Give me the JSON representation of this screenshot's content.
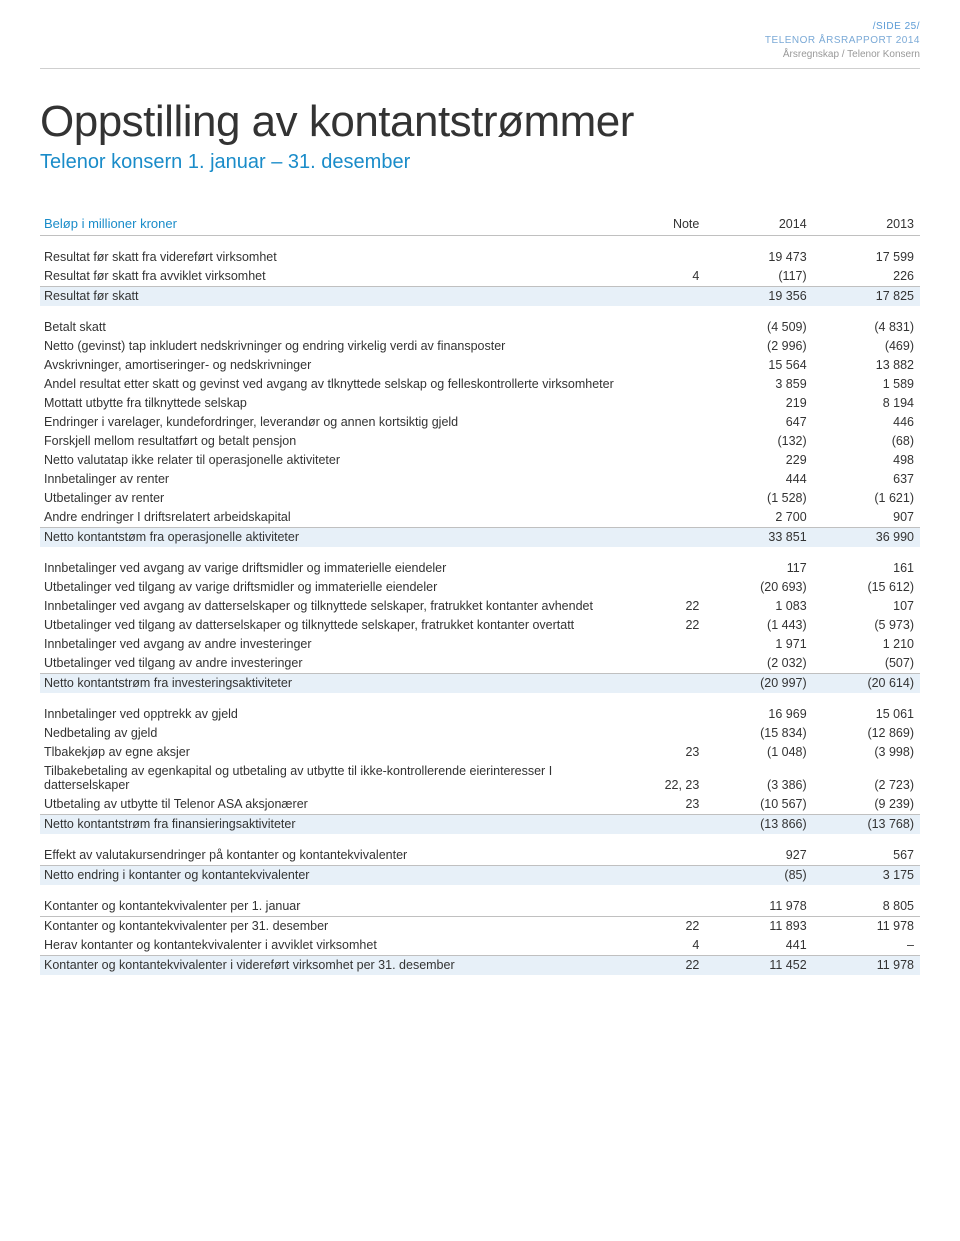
{
  "header": {
    "page_num": "/SIDE 25/",
    "report_line": "TELENOR ÅRSRAPPORT 2014",
    "section_line": "Årsregnskap / Telenor Konsern"
  },
  "title": "Oppstilling av kontantstrømmer",
  "subtitle": "Telenor konsern 1. januar – 31. desember",
  "table": {
    "header": {
      "label": "Beløp i millioner kroner",
      "note": "Note",
      "y14": "2014",
      "y13": "2013"
    },
    "rows": [
      {
        "type": "spacer"
      },
      {
        "type": "row",
        "label": "Resultat før skatt fra videreført virksomhet",
        "note": "",
        "v14": "19 473",
        "v13": "17 599"
      },
      {
        "type": "row",
        "label": "Resultat før skatt fra avviklet virksomhet",
        "note": "4",
        "v14": "(117)",
        "v13": "226"
      },
      {
        "type": "row",
        "label": "Resultat før skatt",
        "note": "",
        "v14": "19 356",
        "v13": "17 825",
        "hl": true,
        "bold": false,
        "topBorder": true
      },
      {
        "type": "spacer"
      },
      {
        "type": "row",
        "label": "Betalt skatt",
        "note": "",
        "v14": "(4 509)",
        "v13": "(4 831)"
      },
      {
        "type": "row",
        "label": "Netto (gevinst) tap inkludert nedskrivninger og endring virkelig verdi av finansposter",
        "note": "",
        "v14": "(2 996)",
        "v13": "(469)"
      },
      {
        "type": "row",
        "label": "Avskrivninger, amortiseringer- og nedskrivninger",
        "note": "",
        "v14": "15 564",
        "v13": "13 882"
      },
      {
        "type": "row",
        "label": "Andel resultat etter skatt og gevinst ved avgang av tlknyttede selskap og felleskontrollerte virksomheter",
        "note": "",
        "v14": "3 859",
        "v13": "1 589"
      },
      {
        "type": "row",
        "label": "Mottatt utbytte fra tilknyttede selskap",
        "note": "",
        "v14": "219",
        "v13": "8 194"
      },
      {
        "type": "row",
        "label": "Endringer i varelager, kundefordringer, leverandør og annen kortsiktig gjeld",
        "note": "",
        "v14": "647",
        "v13": "446"
      },
      {
        "type": "row",
        "label": "Forskjell mellom resultatført og betalt pensjon",
        "note": "",
        "v14": "(132)",
        "v13": "(68)"
      },
      {
        "type": "row",
        "label": "Netto valutatap ikke relater til operasjonelle aktiviteter",
        "note": "",
        "v14": "229",
        "v13": "498"
      },
      {
        "type": "row",
        "label": "Innbetalinger av renter",
        "note": "",
        "v14": "444",
        "v13": "637"
      },
      {
        "type": "row",
        "label": "Utbetalinger av renter",
        "note": "",
        "v14": "(1 528)",
        "v13": "(1 621)"
      },
      {
        "type": "row",
        "label": "Andre endringer I driftsrelatert arbeidskapital",
        "note": "",
        "v14": "2 700",
        "v13": "907"
      },
      {
        "type": "row",
        "label": "Netto kontantstøm fra operasjonelle aktiviteter",
        "note": "",
        "v14": "33 851",
        "v13": "36 990",
        "hl": true,
        "bold": true,
        "topBorder": true
      },
      {
        "type": "spacer"
      },
      {
        "type": "row",
        "label": "Innbetalinger ved avgang av varige driftsmidler og immaterielle eiendeler",
        "note": "",
        "v14": "117",
        "v13": "161"
      },
      {
        "type": "row",
        "label": "Utbetalinger ved tilgang av varige driftsmidler og immaterielle eiendeler",
        "note": "",
        "v14": "(20 693)",
        "v13": "(15 612)"
      },
      {
        "type": "row",
        "label": "Innbetalinger ved avgang av datterselskaper og tilknyttede selskaper, fratrukket kontanter avhendet",
        "note": "22",
        "v14": "1 083",
        "v13": "107"
      },
      {
        "type": "row",
        "label": "Utbetalinger ved tilgang av datterselskaper og tilknyttede selskaper, fratrukket kontanter overtatt",
        "note": "22",
        "v14": "(1 443)",
        "v13": "(5 973)"
      },
      {
        "type": "row",
        "label": "Innbetalinger ved avgang av andre investeringer",
        "note": "",
        "v14": "1 971",
        "v13": "1 210"
      },
      {
        "type": "row",
        "label": "Utbetalinger ved tilgang av andre investeringer",
        "note": "",
        "v14": "(2 032)",
        "v13": "(507)"
      },
      {
        "type": "row",
        "label": "Netto kontantstrøm fra investeringsaktiviteter",
        "note": "",
        "v14": "(20 997)",
        "v13": "(20 614)",
        "hl": true,
        "bold": true,
        "topBorder": true
      },
      {
        "type": "spacer"
      },
      {
        "type": "row",
        "label": "Innbetalinger ved opptrekk av gjeld",
        "note": "",
        "v14": "16 969",
        "v13": "15 061"
      },
      {
        "type": "row",
        "label": "Nedbetaling av gjeld",
        "note": "",
        "v14": "(15 834)",
        "v13": "(12 869)"
      },
      {
        "type": "row",
        "label": "Tlbakekjøp av egne aksjer",
        "note": "23",
        "v14": "(1 048)",
        "v13": "(3 998)"
      },
      {
        "type": "row",
        "label": "Tilbakebetaling av egenkapital og utbetaling av utbytte til ikke-kontrollerende eierinteresser I datterselskaper",
        "note": "22, 23",
        "v14": "(3 386)",
        "v13": "(2 723)"
      },
      {
        "type": "row",
        "label": "Utbetaling av utbytte til Telenor ASA aksjonærer",
        "note": "23",
        "v14": "(10 567)",
        "v13": "(9 239)"
      },
      {
        "type": "row",
        "label": "Netto kontantstrøm fra finansieringsaktiviteter",
        "note": "",
        "v14": "(13 866)",
        "v13": "(13 768)",
        "hl": true,
        "bold": true,
        "topBorder": true
      },
      {
        "type": "spacer"
      },
      {
        "type": "row",
        "label": "Effekt av valutakursendringer på kontanter og kontantekvivalenter",
        "note": "",
        "v14": "927",
        "v13": "567"
      },
      {
        "type": "row",
        "label": "Netto endring i kontanter og kontantekvivalenter",
        "note": "",
        "v14": "(85)",
        "v13": "3 175",
        "hl": true,
        "bold": true,
        "topBorder": true
      },
      {
        "type": "spacer"
      },
      {
        "type": "row",
        "label": "Kontanter og kontantekvivalenter per 1. januar",
        "note": "",
        "v14": "11 978",
        "v13": "8 805"
      },
      {
        "type": "row",
        "label": "Kontanter og kontantekvivalenter per 31. desember",
        "note": "22",
        "v14": "11 893",
        "v13": "11 978",
        "topBorder": true
      },
      {
        "type": "row",
        "label": "Herav kontanter og kontantekvivalenter i avviklet virksomhet",
        "note": "4",
        "v14": "441",
        "v13": "–"
      },
      {
        "type": "row",
        "label": "Kontanter og kontantekvivalenter i videreført virksomhet per 31. desember",
        "note": "22",
        "v14": "11 452",
        "v13": "11 978",
        "hl": true,
        "bold": true,
        "topBorder": true
      }
    ]
  }
}
